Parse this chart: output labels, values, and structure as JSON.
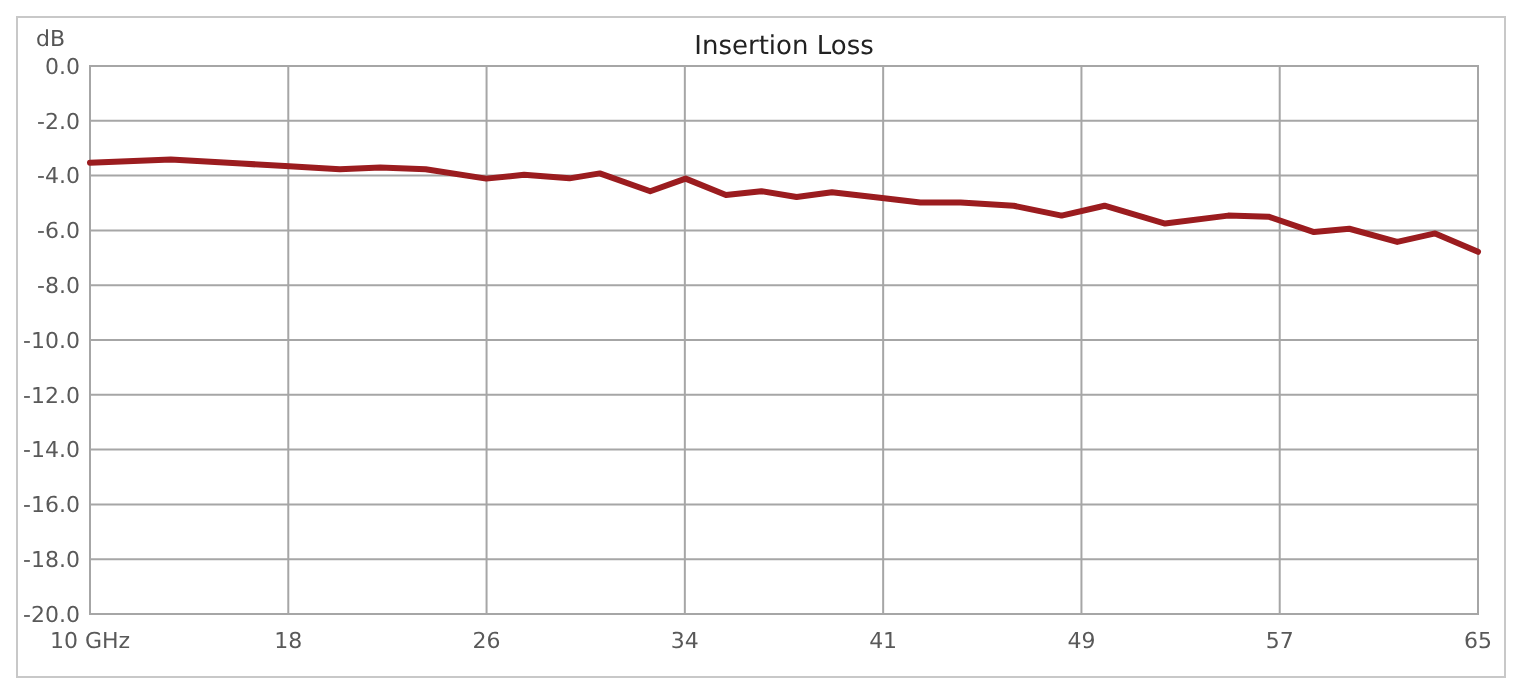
{
  "chart_data": {
    "type": "line",
    "title": "Insertion Loss",
    "ylabel": "dB",
    "x": [
      10,
      13.2,
      16.0,
      17.9,
      19.9,
      21.5,
      23.3,
      25.7,
      27.2,
      29.0,
      30.2,
      32.2,
      33.6,
      35.2,
      36.6,
      38.0,
      39.4,
      41.3,
      42.9,
      44.5,
      46.6,
      48.5,
      50.2,
      52.6,
      55.1,
      56.7,
      58.5,
      59.9,
      61.8,
      63.3,
      65
    ],
    "series": [
      {
        "color": "#9b1c1f",
        "values": [
          -3.53,
          -3.41,
          -3.56,
          -3.66,
          -3.77,
          -3.7,
          -3.77,
          -4.11,
          -3.97,
          -4.1,
          -3.92,
          -4.57,
          -4.11,
          -4.71,
          -4.57,
          -4.78,
          -4.61,
          -4.81,
          -4.98,
          -4.98,
          -5.1,
          -5.46,
          -5.1,
          -5.75,
          -5.46,
          -5.5,
          -6.06,
          -5.94,
          -6.42,
          -6.11,
          -6.78
        ]
      }
    ],
    "xlim": [
      10,
      65
    ],
    "xticks": [
      {
        "value": 10,
        "label": "10 GHz"
      },
      {
        "value": 17.857,
        "label": "18"
      },
      {
        "value": 25.714,
        "label": "26"
      },
      {
        "value": 33.571,
        "label": "34"
      },
      {
        "value": 41.429,
        "label": "41"
      },
      {
        "value": 49.286,
        "label": "49"
      },
      {
        "value": 57.143,
        "label": "57"
      },
      {
        "value": 65,
        "label": "65"
      }
    ],
    "ylim": [
      -20,
      0
    ],
    "yticks": [
      {
        "value": 0,
        "label": "0.0"
      },
      {
        "value": -2,
        "label": "-2.0"
      },
      {
        "value": -4,
        "label": "-4.0"
      },
      {
        "value": -6,
        "label": "-6.0"
      },
      {
        "value": -8,
        "label": "-8.0"
      },
      {
        "value": -10,
        "label": "-10.0"
      },
      {
        "value": -12,
        "label": "-12.0"
      },
      {
        "value": -14,
        "label": "-14.0"
      },
      {
        "value": -16,
        "label": "-16.0"
      },
      {
        "value": -18,
        "label": "-18.0"
      },
      {
        "value": -20,
        "label": "-20.0"
      }
    ],
    "grid": true,
    "marker": "none",
    "line_style": "solid"
  }
}
